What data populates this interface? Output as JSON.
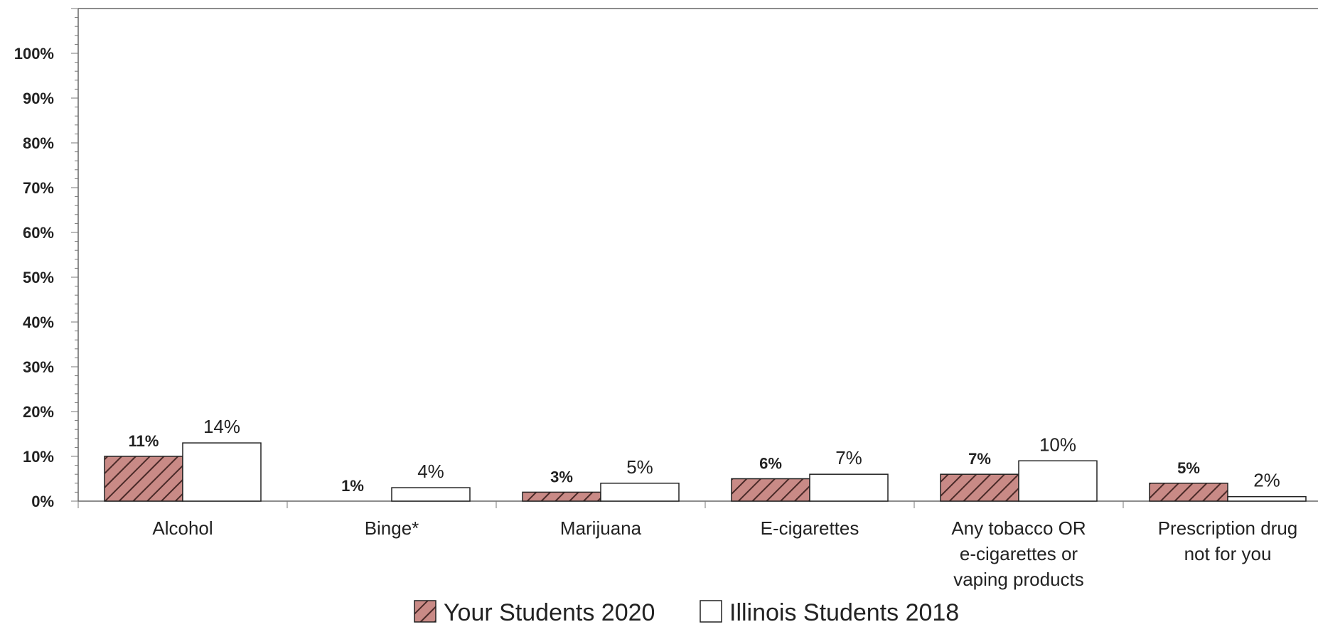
{
  "chart_data": {
    "type": "bar",
    "categories": [
      [
        "Alcohol"
      ],
      [
        "Binge*"
      ],
      [
        "Marijuana"
      ],
      [
        "E-cigarettes"
      ],
      [
        "Any tobacco OR",
        "e-cigarettes or",
        "vaping products"
      ],
      [
        "Prescription drug",
        "not for you"
      ]
    ],
    "series": [
      {
        "name": "Your Students 2020",
        "values": [
          10,
          0,
          2,
          5,
          6,
          4
        ],
        "labels": [
          "11%",
          "1%",
          "3%",
          "6%",
          "7%",
          "5%"
        ],
        "fill": "#c98a86",
        "pattern": "diagonal-hatch"
      },
      {
        "name": "Illinois Students 2018",
        "values": [
          13,
          3,
          4,
          6,
          9,
          1
        ],
        "labels": [
          "14%",
          "4%",
          "5%",
          "7%",
          "10%",
          "2%"
        ],
        "fill": "#ffffff"
      }
    ],
    "y_ticks": [
      "0%",
      "10%",
      "20%",
      "30%",
      "40%",
      "50%",
      "60%",
      "70%",
      "80%",
      "90%",
      "100%"
    ],
    "ylim": [
      0,
      110
    ],
    "title": "",
    "xlabel": "",
    "ylabel": "",
    "grid": false,
    "legend": "bottom-center"
  }
}
